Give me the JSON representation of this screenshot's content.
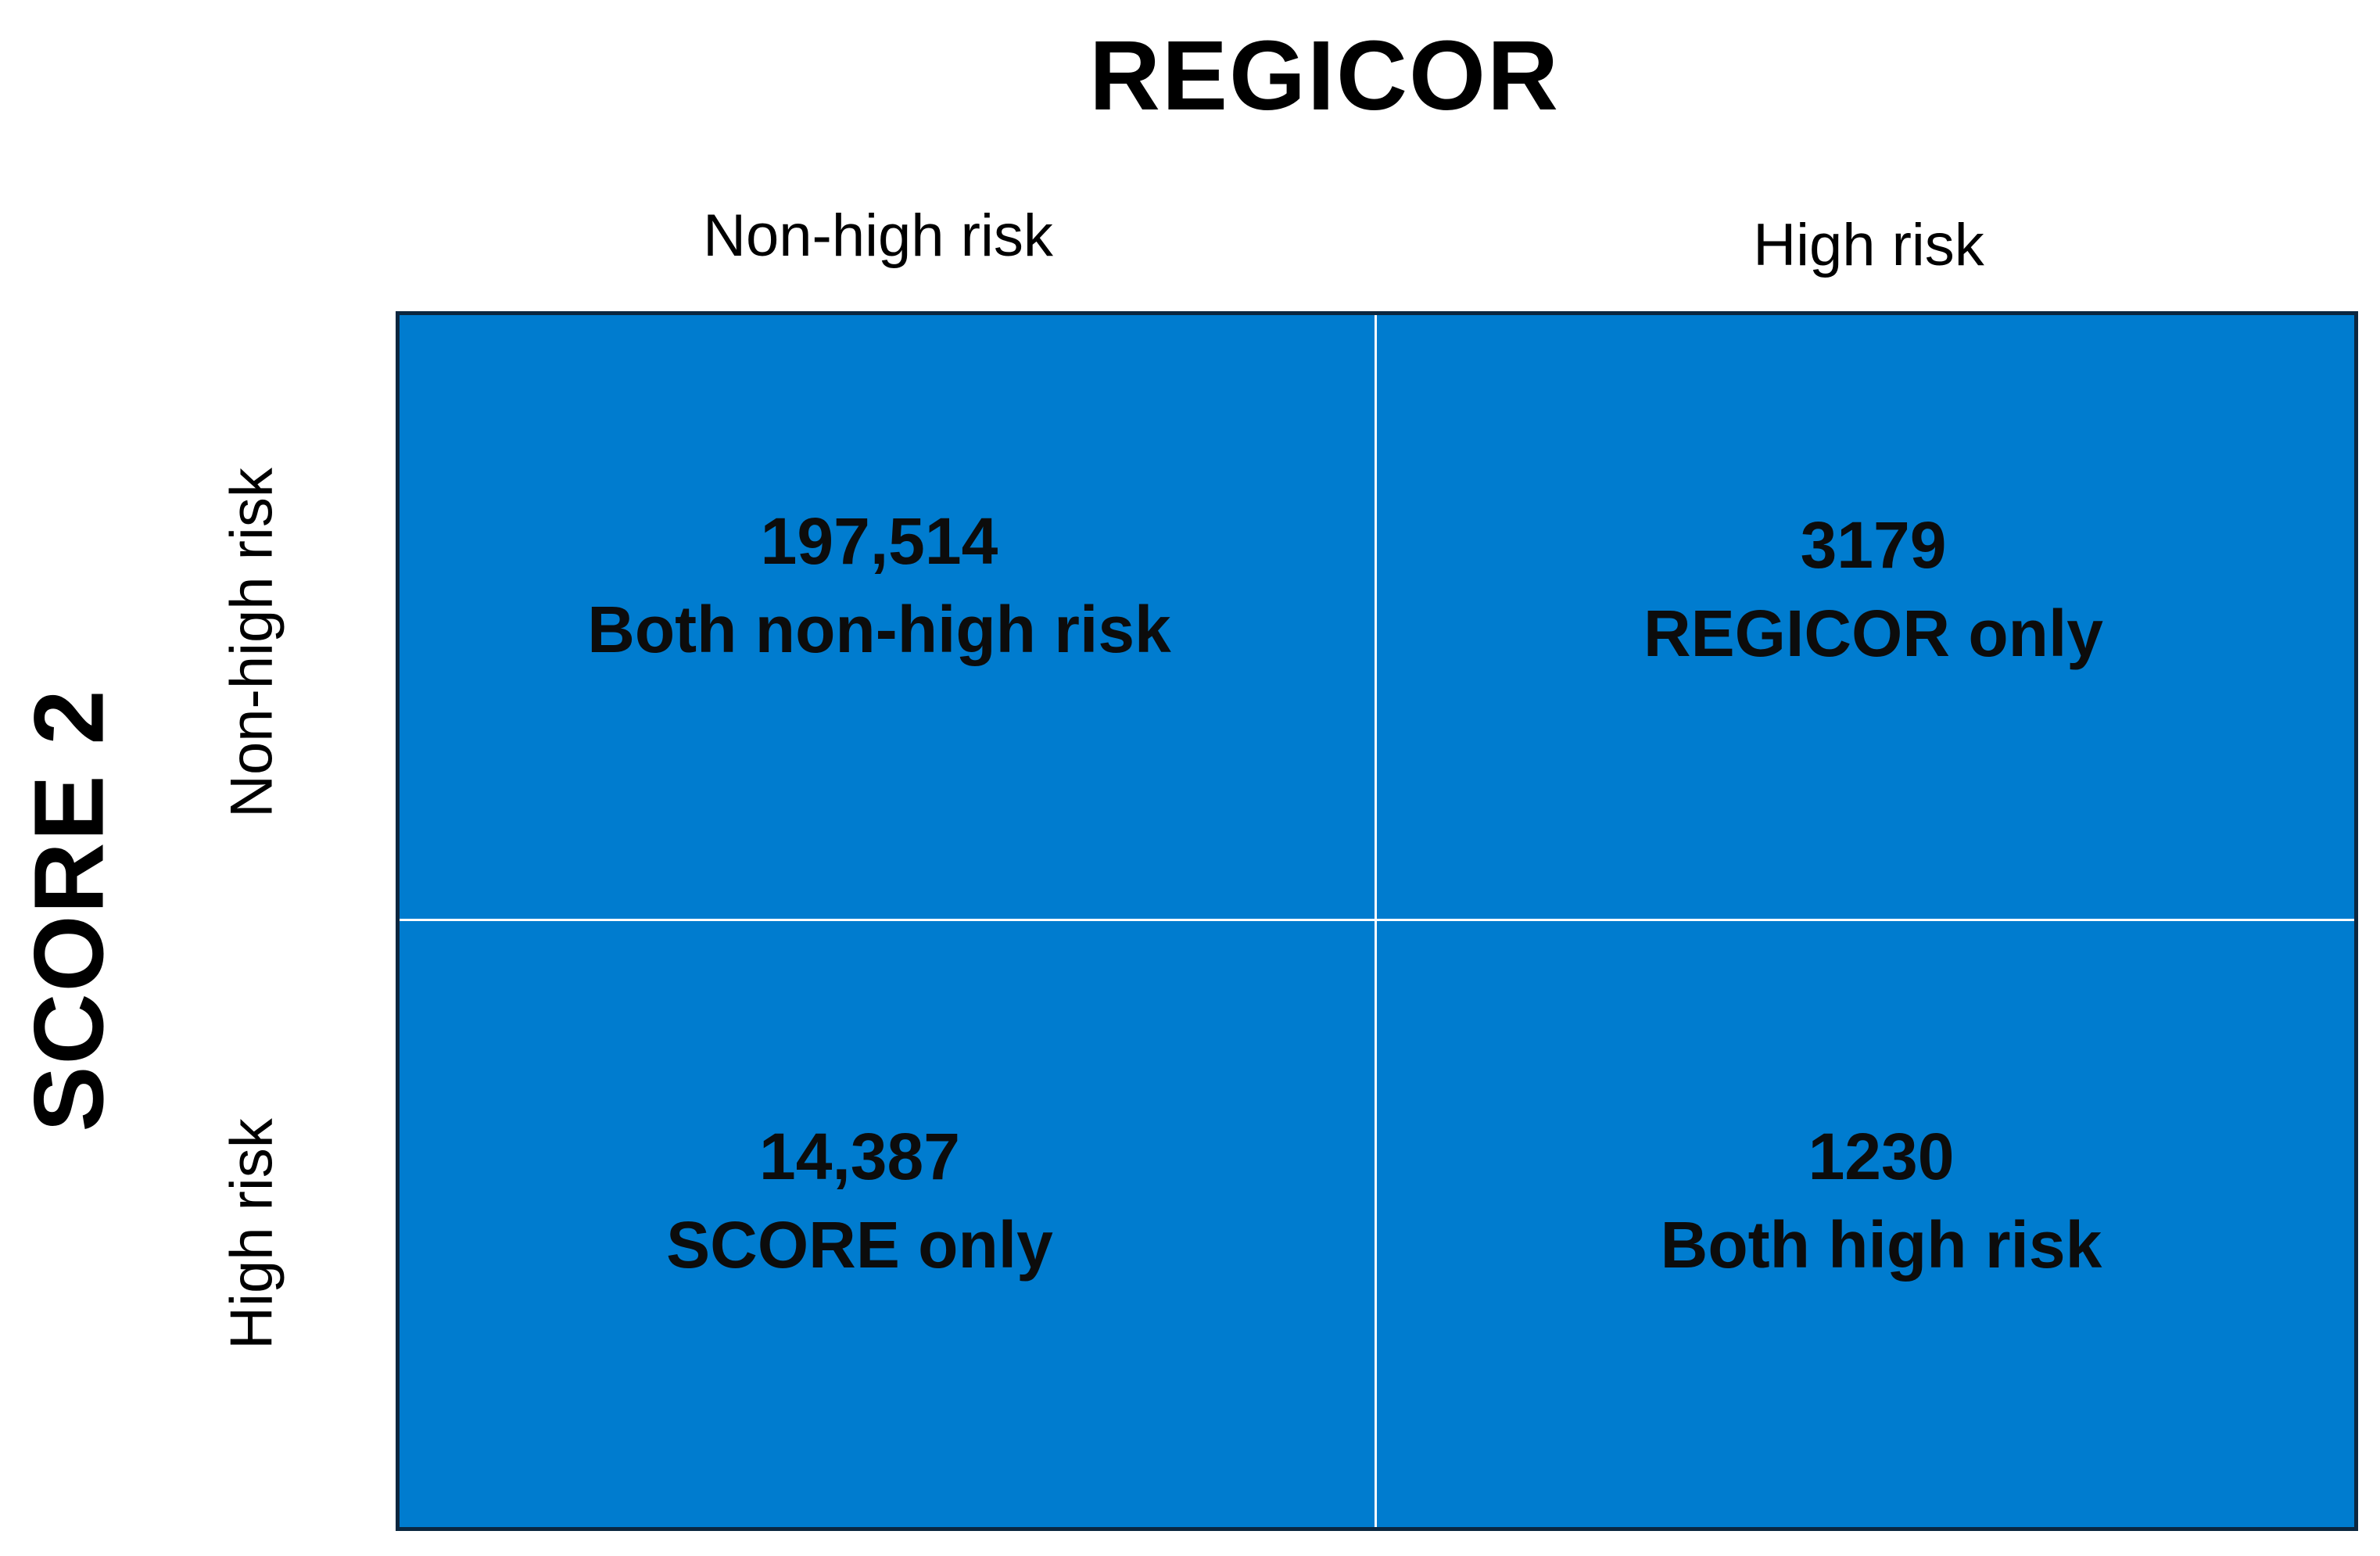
{
  "column_title": "REGICOR",
  "column_headers": [
    "Non-high risk",
    "High risk"
  ],
  "row_title": "SCORE 2",
  "row_headers": [
    "Non-high risk",
    "High risk"
  ],
  "cells": [
    [
      {
        "count": "197,514",
        "label": "Both non-high risk"
      },
      {
        "count": "3179",
        "label": "REGICOR only"
      }
    ],
    [
      {
        "count": "14,387",
        "label": "SCORE only"
      },
      {
        "count": "1230",
        "label": "Both high risk"
      }
    ]
  ],
  "colors": {
    "cell_fill": "#007ccf",
    "divider": "#ffffff",
    "frame": "#0b2740"
  }
}
